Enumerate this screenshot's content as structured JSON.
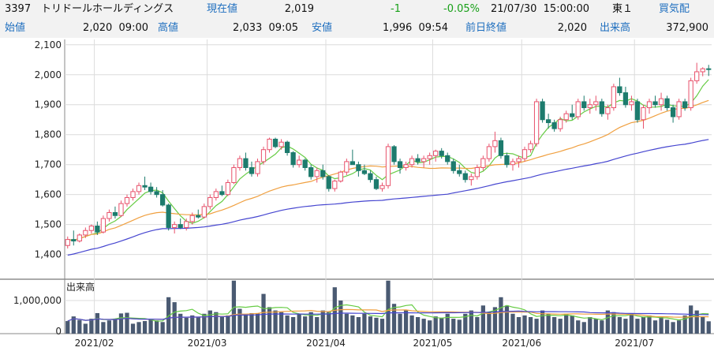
{
  "header": {
    "code": "3397",
    "name": "トリドールホールディングス",
    "current_label": "現在値",
    "current_value": "2,019",
    "change": "-1",
    "change_pct": "-0.05%",
    "datetime": "21/07/30  15:00:00",
    "market": "東１",
    "bid_label": "買気配",
    "open_label": "始値",
    "open_value": "2,020  09:00",
    "high_label": "高値",
    "high_value": "2,033  09:05",
    "low_label": "安値",
    "low_value": "1,996  09:54",
    "prev_close_label": "前日終値",
    "prev_close_value": "2,020",
    "volume_label": "出来高",
    "volume_value": "372,900"
  },
  "colors": {
    "candle_up": "#e8516b",
    "candle_down": "#1d7b6d",
    "ma_short": "#66cc44",
    "ma_mid": "#f0a040",
    "ma_long": "#4646d0",
    "volume_bar": "#4a5a72",
    "label_blue": "#1f6fbf",
    "change_green": "#18a018"
  },
  "chart_data": [
    {
      "type": "candlestick",
      "title": "",
      "ylim": [
        1320,
        2110
      ],
      "yticks": [
        "1,400",
        "1,500",
        "1,600",
        "1,700",
        "1,800",
        "1,900",
        "2,000",
        "2,100"
      ],
      "ytick_values": [
        1400,
        1500,
        1600,
        1700,
        1800,
        1900,
        2000,
        2100
      ],
      "month_labels": [
        "2021/02",
        "2021/03",
        "2021/04",
        "2021/05",
        "2021/06",
        "2021/07"
      ],
      "month_start_index": [
        5,
        24,
        44,
        62,
        77,
        96
      ],
      "ohlc": [
        [
          1430,
          1460,
          1420,
          1450
        ],
        [
          1450,
          1480,
          1430,
          1445
        ],
        [
          1445,
          1470,
          1440,
          1465
        ],
        [
          1465,
          1490,
          1455,
          1480
        ],
        [
          1480,
          1500,
          1470,
          1495
        ],
        [
          1495,
          1510,
          1465,
          1475
        ],
        [
          1475,
          1530,
          1470,
          1520
        ],
        [
          1520,
          1550,
          1510,
          1540
        ],
        [
          1540,
          1560,
          1520,
          1530
        ],
        [
          1530,
          1580,
          1525,
          1570
        ],
        [
          1570,
          1600,
          1560,
          1590
        ],
        [
          1590,
          1620,
          1580,
          1610
        ],
        [
          1610,
          1640,
          1600,
          1630
        ],
        [
          1630,
          1660,
          1615,
          1625
        ],
        [
          1625,
          1640,
          1600,
          1610
        ],
        [
          1610,
          1625,
          1590,
          1600
        ],
        [
          1600,
          1615,
          1560,
          1565
        ],
        [
          1565,
          1570,
          1480,
          1490
        ],
        [
          1490,
          1510,
          1470,
          1500
        ],
        [
          1500,
          1520,
          1485,
          1490
        ],
        [
          1490,
          1520,
          1480,
          1510
        ],
        [
          1510,
          1540,
          1500,
          1530
        ],
        [
          1530,
          1550,
          1520,
          1525
        ],
        [
          1525,
          1570,
          1520,
          1560
        ],
        [
          1560,
          1600,
          1550,
          1590
        ],
        [
          1590,
          1620,
          1580,
          1610
        ],
        [
          1610,
          1630,
          1595,
          1600
        ],
        [
          1600,
          1650,
          1595,
          1640
        ],
        [
          1640,
          1700,
          1635,
          1690
        ],
        [
          1690,
          1730,
          1680,
          1720
        ],
        [
          1720,
          1740,
          1680,
          1690
        ],
        [
          1690,
          1710,
          1660,
          1670
        ],
        [
          1670,
          1720,
          1660,
          1710
        ],
        [
          1710,
          1760,
          1700,
          1750
        ],
        [
          1750,
          1790,
          1740,
          1785
        ],
        [
          1785,
          1790,
          1755,
          1760
        ],
        [
          1760,
          1785,
          1750,
          1775
        ],
        [
          1775,
          1780,
          1730,
          1740
        ],
        [
          1740,
          1745,
          1690,
          1700
        ],
        [
          1700,
          1730,
          1690,
          1715
        ],
        [
          1715,
          1720,
          1680,
          1690
        ],
        [
          1690,
          1700,
          1650,
          1660
        ],
        [
          1660,
          1690,
          1640,
          1680
        ],
        [
          1680,
          1700,
          1650,
          1660
        ],
        [
          1660,
          1665,
          1610,
          1620
        ],
        [
          1620,
          1650,
          1610,
          1645
        ],
        [
          1645,
          1680,
          1640,
          1675
        ],
        [
          1675,
          1720,
          1665,
          1710
        ],
        [
          1710,
          1750,
          1700,
          1700
        ],
        [
          1700,
          1710,
          1660,
          1680
        ],
        [
          1680,
          1700,
          1665,
          1670
        ],
        [
          1670,
          1680,
          1640,
          1650
        ],
        [
          1650,
          1660,
          1615,
          1620
        ],
        [
          1620,
          1640,
          1610,
          1630
        ],
        [
          1630,
          1770,
          1620,
          1760
        ],
        [
          1760,
          1765,
          1700,
          1710
        ],
        [
          1710,
          1720,
          1670,
          1690
        ],
        [
          1690,
          1710,
          1680,
          1700
        ],
        [
          1700,
          1730,
          1690,
          1720
        ],
        [
          1720,
          1735,
          1700,
          1710
        ],
        [
          1710,
          1730,
          1690,
          1720
        ],
        [
          1720,
          1740,
          1700,
          1730
        ],
        [
          1730,
          1750,
          1710,
          1745
        ],
        [
          1745,
          1755,
          1720,
          1730
        ],
        [
          1730,
          1740,
          1700,
          1710
        ],
        [
          1710,
          1720,
          1670,
          1680
        ],
        [
          1680,
          1700,
          1660,
          1670
        ],
        [
          1670,
          1680,
          1640,
          1650
        ],
        [
          1650,
          1670,
          1630,
          1660
        ],
        [
          1660,
          1700,
          1650,
          1690
        ],
        [
          1690,
          1730,
          1680,
          1720
        ],
        [
          1720,
          1770,
          1710,
          1760
        ],
        [
          1760,
          1810,
          1740,
          1780
        ],
        [
          1780,
          1790,
          1720,
          1730
        ],
        [
          1730,
          1740,
          1690,
          1700
        ],
        [
          1700,
          1720,
          1680,
          1710
        ],
        [
          1710,
          1730,
          1690,
          1720
        ],
        [
          1720,
          1760,
          1710,
          1750
        ],
        [
          1750,
          1780,
          1740,
          1770
        ],
        [
          1770,
          1920,
          1760,
          1910
        ],
        [
          1910,
          1920,
          1840,
          1850
        ],
        [
          1850,
          1870,
          1820,
          1840
        ],
        [
          1840,
          1850,
          1810,
          1820
        ],
        [
          1820,
          1860,
          1810,
          1850
        ],
        [
          1850,
          1880,
          1840,
          1870
        ],
        [
          1870,
          1900,
          1850,
          1860
        ],
        [
          1860,
          1920,
          1850,
          1910
        ],
        [
          1910,
          1930,
          1880,
          1890
        ],
        [
          1890,
          1920,
          1870,
          1900
        ],
        [
          1900,
          1930,
          1880,
          1910
        ],
        [
          1910,
          1920,
          1860,
          1870
        ],
        [
          1870,
          1900,
          1850,
          1890
        ],
        [
          1890,
          1970,
          1880,
          1960
        ],
        [
          1960,
          1990,
          1930,
          1940
        ],
        [
          1940,
          1960,
          1890,
          1900
        ],
        [
          1900,
          1930,
          1880,
          1910
        ],
        [
          1910,
          1920,
          1840,
          1850
        ],
        [
          1850,
          1900,
          1820,
          1890
        ],
        [
          1890,
          1920,
          1870,
          1910
        ],
        [
          1910,
          1930,
          1890,
          1900
        ],
        [
          1900,
          1940,
          1880,
          1920
        ],
        [
          1920,
          1930,
          1880,
          1890
        ],
        [
          1890,
          1900,
          1840,
          1860
        ],
        [
          1860,
          1920,
          1850,
          1910
        ],
        [
          1910,
          1920,
          1880,
          1890
        ],
        [
          1890,
          1990,
          1880,
          1980
        ],
        [
          1980,
          2040,
          1970,
          2010
        ],
        [
          2010,
          2025,
          1995,
          2020
        ],
        [
          2020,
          2033,
          1996,
          2019
        ]
      ],
      "volume_ylim": [
        0,
        1500000
      ],
      "volume_ytick": "1,000,000",
      "volume_ytick_value": 1000000,
      "volume_title": "出来高",
      "volume": [
        380000,
        520000,
        410000,
        300000,
        450000,
        620000,
        350000,
        400000,
        420000,
        610000,
        630000,
        300000,
        350000,
        380000,
        450000,
        400000,
        350000,
        1100000,
        950000,
        600000,
        480000,
        550000,
        500000,
        600000,
        700000,
        650000,
        500000,
        550000,
        1600000,
        750000,
        580000,
        620000,
        620000,
        1200000,
        800000,
        700000,
        650000,
        550000,
        500000,
        600000,
        520000,
        650000,
        500000,
        700000,
        650000,
        1400000,
        1000000,
        600000,
        550000,
        500000,
        600000,
        520000,
        480000,
        450000,
        1600000,
        900000,
        600000,
        700000,
        550000,
        500000,
        450000,
        400000,
        520000,
        480000,
        600000,
        450000,
        420000,
        600000,
        700000,
        500000,
        850000,
        650000,
        800000,
        1100000,
        850000,
        600000,
        500000,
        550000,
        500000,
        450000,
        700000,
        600000,
        500000,
        450000,
        600000,
        550000,
        400000,
        350000,
        500000,
        450000,
        400000,
        700000,
        650000,
        500000,
        450000,
        600000,
        450000,
        500000,
        550000,
        400000,
        500000,
        420000,
        350000,
        400000,
        550000,
        850000,
        700000,
        520000,
        372900
      ]
    }
  ]
}
